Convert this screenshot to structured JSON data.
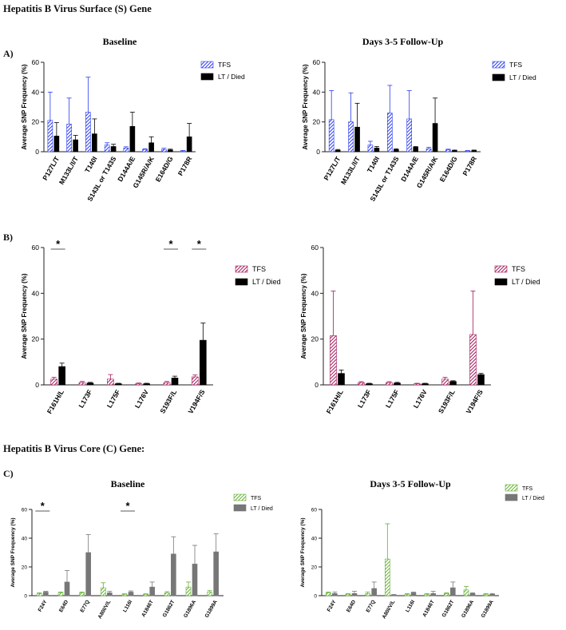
{
  "figure": {
    "surface_heading": "Hepatitis B Virus Surface (S) Gene",
    "core_heading": "Hepatitis B Virus Core (C) Gene:",
    "panel_a": "A)",
    "panel_b": "B)",
    "panel_c": "C)"
  },
  "colors": {
    "blue": "#2a3cf0",
    "magenta": "#a3175a",
    "green": "#62b030",
    "black": "#000000",
    "gray": "#777777"
  },
  "chart_data": [
    {
      "id": "A1",
      "type": "bar",
      "title": "Baseline",
      "xlabel": "",
      "ylabel": "Average SNP Frequency (%)",
      "ylim": [
        0,
        60
      ],
      "yticks": [
        0,
        20,
        40,
        60
      ],
      "legend_position": "right",
      "categories": [
        "P127L/T",
        "M133L/I/T",
        "T140I",
        "S143L or T143S",
        "D144A/E",
        "G145R/A/K",
        "E164D/G",
        "P178R"
      ],
      "series": [
        {
          "name": "TFS",
          "style": "hatch",
          "color": "#2a3cf0",
          "values": [
            21,
            18.5,
            26.5,
            4.5,
            2.5,
            1.5,
            1.5,
            0.5
          ],
          "errors": [
            19,
            17.5,
            23.5,
            1.5,
            0.8,
            0.5,
            0.8,
            0.3
          ]
        },
        {
          "name": "LT / Died",
          "style": "solid",
          "color": "#000000",
          "values": [
            10.5,
            8,
            12,
            3.5,
            17,
            6,
            1.2,
            10
          ],
          "errors": [
            9,
            3,
            10,
            1.5,
            9.5,
            4,
            0.5,
            9
          ]
        }
      ],
      "significance": []
    },
    {
      "id": "A2",
      "type": "bar",
      "title": "Days 3-5 Follow-Up",
      "xlabel": "",
      "ylabel": "Average SNP Frequency (%)",
      "ylim": [
        0,
        60
      ],
      "yticks": [
        0,
        20,
        40,
        60
      ],
      "legend_position": "right",
      "categories": [
        "P127L/T",
        "M133L/I/T",
        "T140I",
        "S143L or T143S",
        "D144A/E",
        "G145R/A/K",
        "E164D/G",
        "P178R"
      ],
      "series": [
        {
          "name": "TFS",
          "style": "hatch",
          "color": "#2a3cf0",
          "values": [
            21.5,
            20,
            4.5,
            26,
            22,
            2,
            1.2,
            0.5
          ],
          "errors": [
            19.5,
            19.5,
            2.5,
            18.5,
            19,
            1,
            0.5,
            0.3
          ]
        },
        {
          "name": "LT / Died",
          "style": "solid",
          "color": "#000000",
          "values": [
            1,
            16.5,
            2.5,
            1.5,
            3,
            19,
            0.8,
            0.8
          ],
          "errors": [
            0.5,
            16,
            1,
            0.5,
            0.5,
            17,
            0.3,
            0.3
          ]
        }
      ],
      "significance": []
    },
    {
      "id": "B1",
      "type": "bar",
      "title": "",
      "xlabel": "",
      "ylabel": "Average SNP Frequency (%)",
      "ylim": [
        0,
        60
      ],
      "yticks": [
        0,
        20,
        40,
        60
      ],
      "legend_position": "right",
      "categories": [
        "F161H/L",
        "L173F",
        "L175F",
        "L176V",
        "S193F/L",
        "V194F/S"
      ],
      "series": [
        {
          "name": "TFS",
          "style": "hatch",
          "color": "#a3175a",
          "values": [
            2.5,
            1,
            2.5,
            0.5,
            1,
            3.5
          ],
          "errors": [
            0.8,
            0.5,
            2,
            0.3,
            0.5,
            0.8
          ]
        },
        {
          "name": "LT / Died",
          "style": "solid",
          "color": "#000000",
          "values": [
            8,
            0.8,
            0.5,
            0.5,
            3,
            19.5
          ],
          "errors": [
            1.5,
            0.3,
            0.2,
            0.2,
            0.8,
            7.5
          ]
        }
      ],
      "significance": [
        {
          "category": "F161H/L",
          "label": "*"
        },
        {
          "category": "S193F/L",
          "label": "*"
        },
        {
          "category": "V194F/S",
          "label": "*"
        }
      ]
    },
    {
      "id": "B2",
      "type": "bar",
      "title": "",
      "xlabel": "",
      "ylabel": "Average SNP Frequency (%)",
      "ylim": [
        0,
        60
      ],
      "yticks": [
        0,
        20,
        40,
        60
      ],
      "legend_position": "right",
      "categories": [
        "F161H/L",
        "L173F",
        "L175F",
        "L176V",
        "S193F/L",
        "V194F/S"
      ],
      "series": [
        {
          "name": "TFS",
          "style": "hatch",
          "color": "#a3175a",
          "values": [
            21.5,
            1,
            1,
            0.5,
            2.5,
            22
          ],
          "errors": [
            19.5,
            0.4,
            0.4,
            0.2,
            0.8,
            19
          ]
        },
        {
          "name": "LT / Died",
          "style": "solid",
          "color": "#000000",
          "values": [
            5,
            0.5,
            0.8,
            0.5,
            1.5,
            4.5
          ],
          "errors": [
            1.5,
            0.2,
            0.3,
            0.2,
            0.3,
            0.5
          ]
        }
      ],
      "significance": []
    },
    {
      "id": "C1",
      "type": "bar",
      "title": "Baseline",
      "xlabel": "",
      "ylabel": "Average SNP Frequency (%)",
      "ylim": [
        0,
        60
      ],
      "yticks": [
        0,
        20,
        40,
        60
      ],
      "legend_position": "right",
      "categories": [
        "F24Y",
        "E64D",
        "E77Q",
        "A80I/V/L",
        "L116I",
        "A1846T",
        "G1862T",
        "G1896A",
        "G1899A"
      ],
      "series": [
        {
          "name": "TFS",
          "style": "hatch",
          "color": "#62b030",
          "values": [
            1.5,
            2,
            2,
            5.5,
            1,
            1,
            2,
            6,
            2.5
          ],
          "errors": [
            0.5,
            0.5,
            0.5,
            3.5,
            0.3,
            0.3,
            0.8,
            3.5,
            1
          ]
        },
        {
          "name": "LT / Died",
          "style": "solid",
          "color": "#777777",
          "values": [
            2.5,
            9.5,
            30,
            2,
            2.5,
            6,
            29,
            22,
            30.5
          ],
          "errors": [
            0.5,
            8,
            12.5,
            1,
            0.8,
            3.5,
            12,
            13,
            12.5
          ]
        }
      ],
      "significance": [
        {
          "category": "F24Y",
          "label": "*"
        },
        {
          "category": "L116I",
          "label": "*"
        }
      ]
    },
    {
      "id": "C2",
      "type": "bar",
      "title": "Days 3-5 Follow-Up",
      "xlabel": "",
      "ylabel": "Average SNP Frequency (%)",
      "ylim": [
        0,
        60
      ],
      "yticks": [
        0,
        20,
        40,
        60
      ],
      "legend_position": "right",
      "categories": [
        "F24Y",
        "E64D",
        "E77Q",
        "A80I/V/L",
        "L116I",
        "A1846T",
        "G1862T",
        "G1896A",
        "G1899A"
      ],
      "series": [
        {
          "name": "TFS",
          "style": "hatch",
          "color": "#62b030",
          "values": [
            2,
            1,
            1.5,
            25.5,
            1,
            1,
            1.5,
            4,
            1
          ],
          "errors": [
            0.5,
            0.5,
            1,
            24.5,
            0.5,
            0.5,
            0.5,
            2.5,
            0.5
          ]
        },
        {
          "name": "LT / Died",
          "style": "solid",
          "color": "#777777",
          "values": [
            1.5,
            1.5,
            5,
            0.5,
            2,
            1.5,
            5.5,
            1.5,
            1
          ],
          "errors": [
            1,
            1.5,
            4.5,
            0.3,
            0.5,
            1.5,
            4,
            0.5,
            0.5
          ]
        }
      ],
      "significance": []
    }
  ]
}
